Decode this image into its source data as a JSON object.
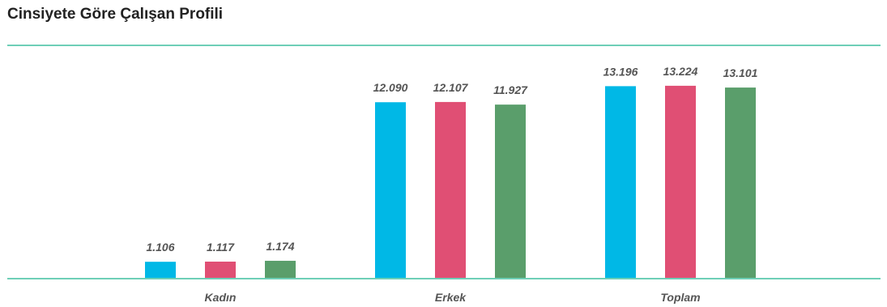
{
  "chart_data": {
    "type": "bar",
    "title": "Cinsiyete Göre Çalışan Profili",
    "categories": [
      "Kadın",
      "Erkek",
      "Toplam"
    ],
    "series": [
      {
        "color": "#00b8e6",
        "values": [
          1106,
          12090,
          13196
        ],
        "labels": [
          "1.106",
          "12.090",
          "13.196"
        ]
      },
      {
        "color": "#e04f74",
        "values": [
          1117,
          12107,
          13224
        ],
        "labels": [
          "1.117",
          "12.107",
          "13.224"
        ]
      },
      {
        "color": "#5a9e6b",
        "values": [
          1174,
          11927,
          13101
        ],
        "labels": [
          "1.174",
          "11.927",
          "13.101"
        ]
      }
    ],
    "ylim": [
      0,
      14500
    ],
    "grid": false,
    "legend": "none",
    "axis_color": "#3fbf9f"
  }
}
